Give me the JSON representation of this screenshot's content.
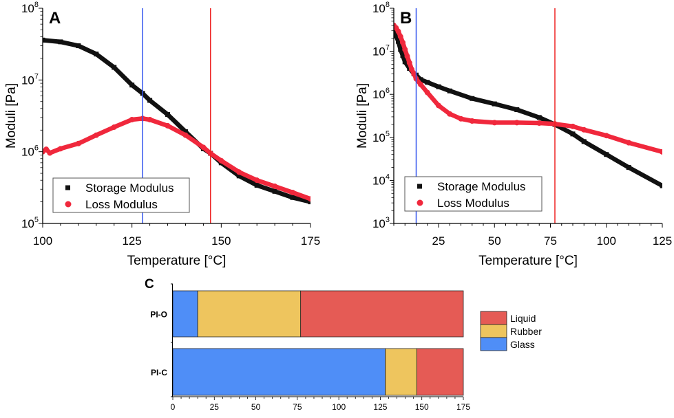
{
  "chart_data": [
    {
      "panel_label": "A",
      "type": "scatter",
      "xlabel": "Temperature [°C]",
      "ylabel": "Moduli [Pa]",
      "xlim": [
        100,
        175
      ],
      "ylim": [
        100000,
        100000000
      ],
      "yscale": "log",
      "xticks": [
        100,
        125,
        150,
        175
      ],
      "yticks": [
        {
          "base": "10",
          "exp": "5",
          "v": 100000
        },
        {
          "base": "10",
          "exp": "6",
          "v": 1000000
        },
        {
          "base": "10",
          "exp": "7",
          "v": 10000000
        },
        {
          "base": "10",
          "exp": "8",
          "v": 100000000
        }
      ],
      "vlines": [
        {
          "x": 128,
          "color": "#3355ee"
        },
        {
          "x": 147,
          "color": "#ee2222"
        }
      ],
      "legend_placement": "bottom-left",
      "series": [
        {
          "name": "Storage Modulus",
          "marker": "square",
          "color": "#111111",
          "x": [
            100,
            105,
            110,
            115,
            120,
            125,
            128,
            130,
            135,
            140,
            145,
            147,
            150,
            155,
            160,
            165,
            170,
            175
          ],
          "y": [
            36000000,
            34000000,
            30000000,
            23000000,
            15000000,
            8500000,
            6500000,
            5200000,
            3300000,
            1900000,
            1100000,
            950000,
            700000,
            460000,
            340000,
            280000,
            230000,
            200000
          ]
        },
        {
          "name": "Loss Modulus",
          "marker": "circle",
          "color": "#f0283c",
          "x": [
            100,
            101,
            102,
            105,
            110,
            115,
            120,
            125,
            128,
            130,
            135,
            140,
            145,
            147,
            150,
            155,
            160,
            165,
            170,
            175
          ],
          "y": [
            1000000,
            1080000,
            960000,
            1100000,
            1300000,
            1700000,
            2200000,
            2800000,
            2900000,
            2800000,
            2300000,
            1700000,
            1150000,
            950000,
            750000,
            520000,
            400000,
            330000,
            270000,
            220000
          ]
        }
      ]
    },
    {
      "panel_label": "B",
      "type": "scatter",
      "xlabel": "Temperature [°C]",
      "ylabel": "Moduli [Pa]",
      "xlim": [
        5,
        125
      ],
      "ylim": [
        1000,
        100000000
      ],
      "yscale": "log",
      "xticks": [
        25,
        50,
        75,
        100,
        125
      ],
      "yticks": [
        {
          "base": "10",
          "exp": "3",
          "v": 1000
        },
        {
          "base": "10",
          "exp": "4",
          "v": 10000
        },
        {
          "base": "10",
          "exp": "5",
          "v": 100000
        },
        {
          "base": "10",
          "exp": "6",
          "v": 1000000
        },
        {
          "base": "10",
          "exp": "7",
          "v": 10000000
        },
        {
          "base": "10",
          "exp": "8",
          "v": 100000000
        }
      ],
      "vlines": [
        {
          "x": 15,
          "color": "#3355ee"
        },
        {
          "x": 77,
          "color": "#ee2222"
        }
      ],
      "legend_placement": "bottom-left",
      "series": [
        {
          "name": "Storage Modulus",
          "marker": "square",
          "color": "#111111",
          "x": [
            5,
            6,
            7,
            8,
            9,
            10,
            12,
            14,
            15,
            17,
            20,
            25,
            30,
            40,
            50,
            60,
            70,
            77,
            85,
            90,
            100,
            110,
            125
          ],
          "y": [
            35000000,
            23000000,
            17000000,
            11000000,
            8000000,
            5700000,
            4000000,
            3000000,
            2800000,
            2200000,
            1900000,
            1500000,
            1200000,
            800000,
            600000,
            440000,
            290000,
            200000,
            120000,
            80000,
            40000,
            20000,
            7500
          ]
        },
        {
          "name": "Loss Modulus",
          "marker": "circle",
          "color": "#f0283c",
          "x": [
            5,
            6,
            7,
            8,
            9,
            10,
            11,
            12,
            13,
            14,
            15,
            17,
            20,
            25,
            30,
            35,
            40,
            50,
            60,
            70,
            77,
            85,
            90,
            100,
            110,
            125
          ],
          "y": [
            40000000,
            35000000,
            29000000,
            22000000,
            16000000,
            11000000,
            7700000,
            5400000,
            3800000,
            3000000,
            2300000,
            1700000,
            1100000,
            550000,
            350000,
            270000,
            240000,
            220000,
            220000,
            215000,
            205000,
            180000,
            150000,
            110000,
            75000,
            46000
          ]
        }
      ]
    },
    {
      "panel_label": "C",
      "type": "bar",
      "orientation": "horizontal-stacked",
      "xlabel": "Temperature [°C]",
      "xlim": [
        0,
        175
      ],
      "xticks": [
        0,
        25,
        50,
        75,
        100,
        125,
        150,
        175
      ],
      "categories": [
        "PI-O",
        "PI-C"
      ],
      "legend_placement": "right",
      "series": [
        {
          "name": "Glass",
          "color": "#4f8ef7",
          "values": [
            15,
            128
          ]
        },
        {
          "name": "Rubber",
          "color": "#eec55e",
          "values": [
            62,
            19
          ]
        },
        {
          "name": "Liquid",
          "color": "#e55b55",
          "values": [
            98,
            28
          ]
        }
      ],
      "legend_order": [
        "Liquid",
        "Rubber",
        "Glass"
      ]
    }
  ]
}
